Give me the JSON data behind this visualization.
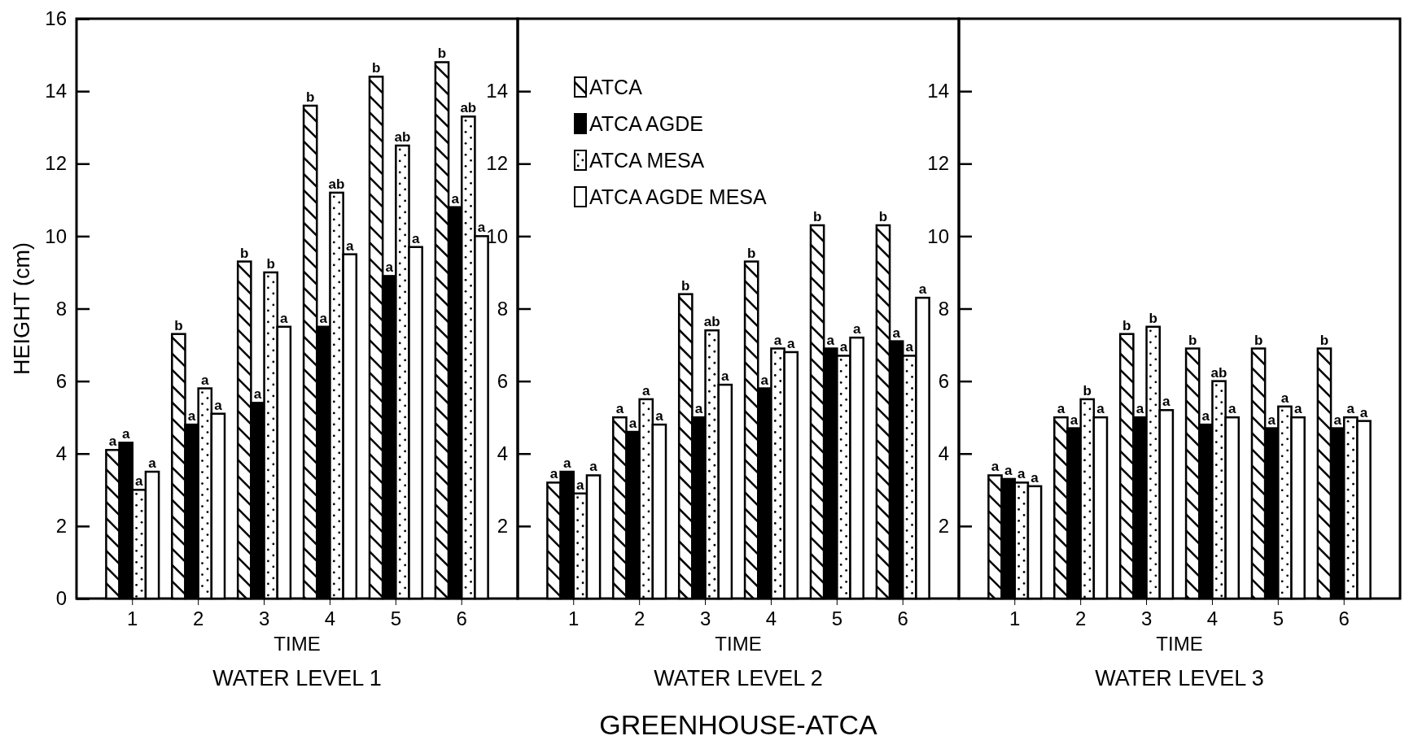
{
  "chart_data": [
    {
      "type": "bar",
      "title": "WATER LEVEL 1",
      "xlabel": "TIME",
      "ylabel": "HEIGHT (cm)",
      "categories": [
        "1",
        "2",
        "3",
        "4",
        "5",
        "6"
      ],
      "ylim": [
        0,
        16
      ],
      "yticks": [
        0,
        2,
        4,
        6,
        8,
        10,
        12,
        14,
        16
      ],
      "series": [
        {
          "color": "#ffffff",
          "values": [
            4.1,
            7.3,
            9.3,
            13.6,
            14.4,
            14.8
          ],
          "value_labels": [
            "a",
            "b",
            "b",
            "b",
            "b",
            "b"
          ]
        },
        {
          "color": "#000000",
          "values": [
            4.3,
            4.8,
            5.4,
            7.5,
            8.9,
            10.8
          ],
          "value_labels": [
            "a",
            "a",
            "a",
            "a",
            "a",
            "a"
          ]
        },
        {
          "color": "#ffffff",
          "values": [
            3.0,
            5.8,
            9.0,
            11.2,
            12.5,
            13.3
          ],
          "value_labels": [
            "a",
            "a",
            "b",
            "ab",
            "ab",
            "ab"
          ]
        },
        {
          "color": "#ffffff",
          "values": [
            3.5,
            5.1,
            7.5,
            9.5,
            9.7,
            10.0
          ],
          "value_labels": [
            "a",
            "a",
            "a",
            "a",
            "a",
            "a"
          ]
        }
      ]
    },
    {
      "type": "bar",
      "title": "WATER LEVEL 2",
      "xlabel": "TIME",
      "categories": [
        "1",
        "2",
        "3",
        "4",
        "5",
        "6"
      ],
      "ylim": [
        0,
        16
      ],
      "yticks": [
        2,
        4,
        6,
        8,
        10,
        12,
        14
      ],
      "legend": "top left",
      "annotations": [
        "GREENHOUSE-ATCA"
      ],
      "series": [
        {
          "name": "ATCA",
          "color": "#ffffff",
          "values": [
            3.2,
            5.0,
            8.4,
            9.3,
            10.3,
            10.3
          ],
          "value_labels": [
            "a",
            "a",
            "b",
            "b",
            "b",
            "b"
          ]
        },
        {
          "name": "ATCA AGDE",
          "color": "#000000",
          "values": [
            3.5,
            4.6,
            5.0,
            5.8,
            6.9,
            7.1
          ],
          "value_labels": [
            "a",
            "a",
            "a",
            "a",
            "a",
            "a"
          ]
        },
        {
          "name": "ATCA MESA",
          "color": "#ffffff",
          "values": [
            2.9,
            5.5,
            7.4,
            6.9,
            6.7,
            6.7
          ],
          "value_labels": [
            "a",
            "a",
            "ab",
            "a",
            "a",
            "a"
          ]
        },
        {
          "name": "ATCA AGDE MESA",
          "color": "#ffffff",
          "values": [
            3.4,
            4.8,
            5.9,
            6.8,
            7.2,
            8.3
          ],
          "value_labels": [
            "a",
            "a",
            "a",
            "a",
            "a",
            "a"
          ]
        }
      ]
    },
    {
      "type": "bar",
      "title": "WATER LEVEL 3",
      "xlabel": "TIME",
      "categories": [
        "1",
        "2",
        "3",
        "4",
        "5",
        "6"
      ],
      "ylim": [
        0,
        16
      ],
      "yticks": [
        2,
        4,
        6,
        8,
        10,
        12,
        14
      ],
      "series": [
        {
          "color": "#ffffff",
          "values": [
            3.4,
            5.0,
            7.3,
            6.9,
            6.9,
            6.9
          ],
          "value_labels": [
            "a",
            "a",
            "b",
            "b",
            "b",
            "b"
          ]
        },
        {
          "color": "#000000",
          "values": [
            3.3,
            4.7,
            5.0,
            4.8,
            4.7,
            4.7
          ],
          "value_labels": [
            "a",
            "a",
            "a",
            "a",
            "a",
            "a"
          ]
        },
        {
          "color": "#ffffff",
          "values": [
            3.2,
            5.5,
            7.5,
            6.0,
            5.3,
            5.0
          ],
          "value_labels": [
            "a",
            "b",
            "b",
            "ab",
            "a",
            "a"
          ]
        },
        {
          "color": "#ffffff",
          "values": [
            3.1,
            5.0,
            5.2,
            5.0,
            5.0,
            4.9
          ],
          "value_labels": [
            "a",
            "a",
            "a",
            "a",
            "a",
            "a"
          ]
        }
      ]
    }
  ]
}
